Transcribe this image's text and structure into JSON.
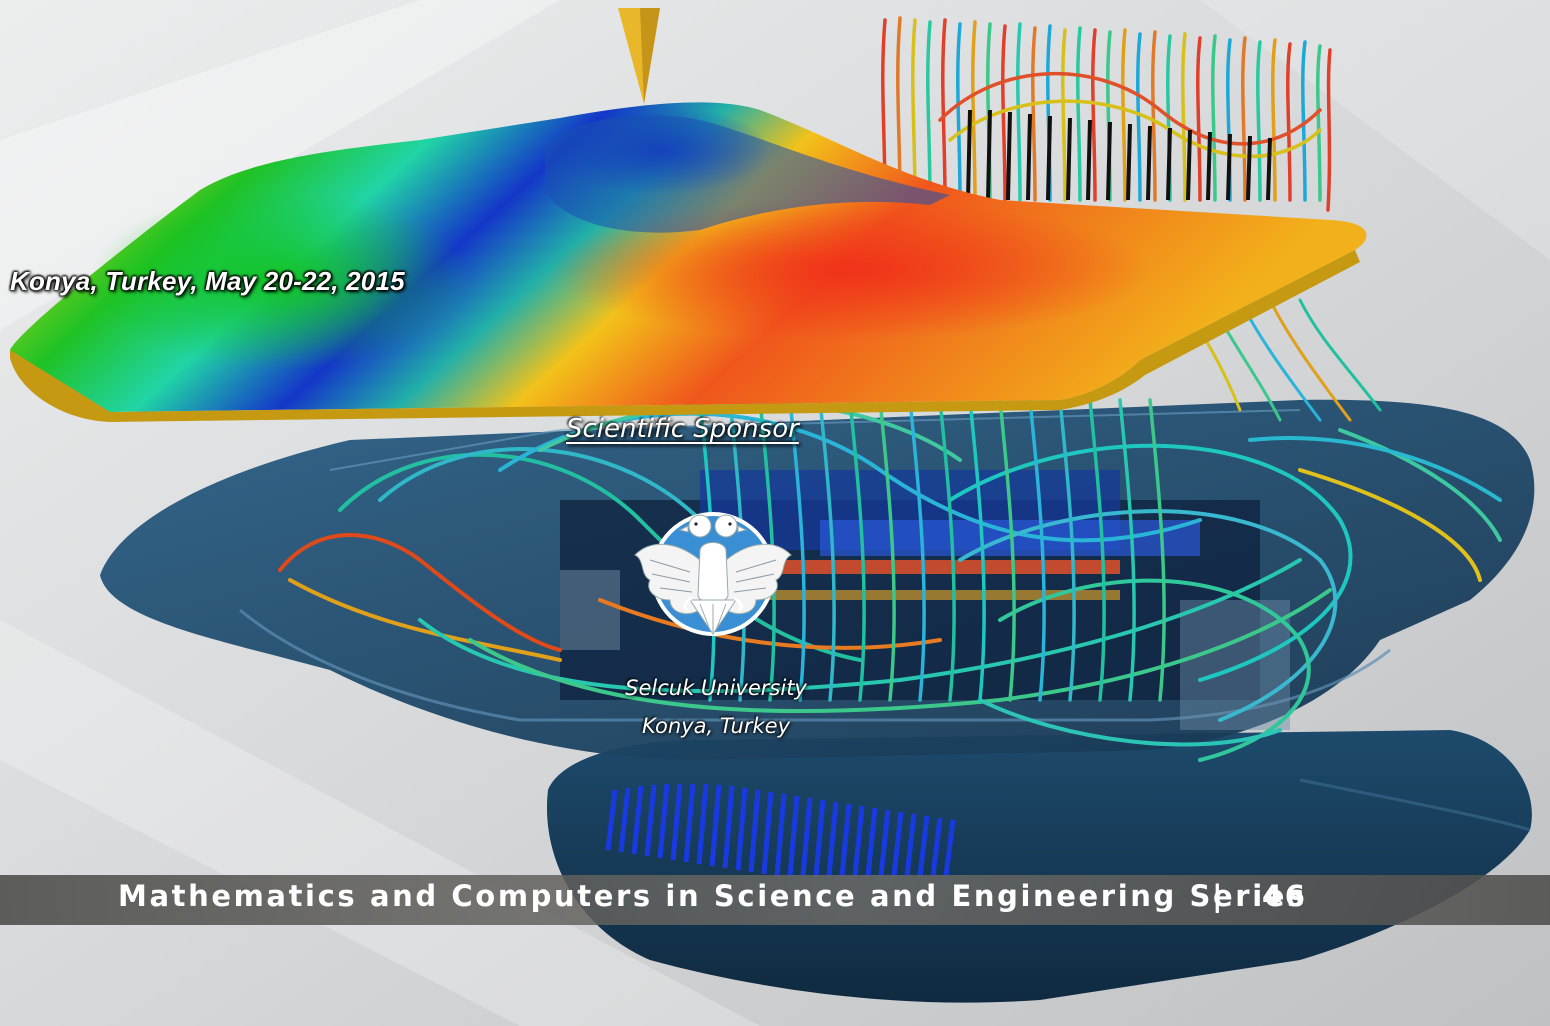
{
  "event": {
    "location_date": "Konya, Turkey, May 20-22, 2015"
  },
  "sponsor": {
    "heading": "Scientific Sponsor",
    "university": "Selcuk University",
    "city": "Konya, Turkey"
  },
  "series": {
    "title": "Mathematics and Computers in Science and Engineering Series",
    "separator": "|",
    "number": "46"
  },
  "colors": {
    "plate_warm": "#f2c21a",
    "plate_hot": "#f0561c",
    "plate_cool": "#1fc225",
    "plate_deep": "#1436c8",
    "body_dark": "#1b3f5c",
    "band": "#5a5956"
  },
  "icons": [
    "double-headed-eagle-seal"
  ]
}
